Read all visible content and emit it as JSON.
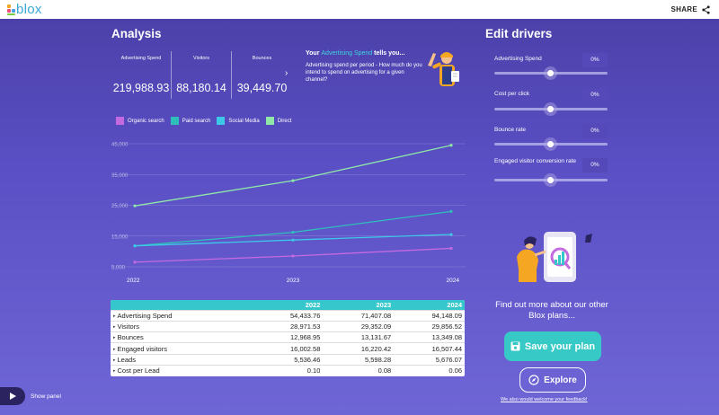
{
  "app": {
    "logo_text": "blox",
    "share_label": "SHARE"
  },
  "analysis": {
    "title": "Analysis",
    "stats": [
      {
        "label": "Advertising Spend",
        "value": "219,988.93"
      },
      {
        "label": "Visitors",
        "value": "88,180.14"
      },
      {
        "label": "Bounces",
        "value": "39,449.70"
      }
    ],
    "tells": {
      "prefix": "Your",
      "highlight": "Advertising Spend",
      "suffix": "tells you...",
      "description": "Advertising spend per period - How much do you intend to spend on advertising for a given channel?"
    }
  },
  "chart_data": {
    "type": "line",
    "x": [
      "2022",
      "2023",
      "2024"
    ],
    "ylim": [
      5000,
      45000
    ],
    "yticks": [
      "45,000",
      "35,000",
      "25,000",
      "15,000",
      "5,000"
    ],
    "ytick_values": [
      45000,
      35000,
      25000,
      15000,
      5000
    ],
    "grid": true,
    "legend_position": "top-left",
    "series": [
      {
        "name": "Organic search",
        "color": "#c46ae0",
        "values": [
          6500,
          8500,
          11000
        ]
      },
      {
        "name": "Paid search",
        "color": "#2fbfba",
        "values": [
          11800,
          16200,
          23000
        ]
      },
      {
        "name": "Social Media",
        "color": "#3ec8e8",
        "values": [
          11800,
          13700,
          15500
        ]
      },
      {
        "name": "Direct",
        "color": "#8fe8a8",
        "values": [
          24800,
          33000,
          44500
        ]
      }
    ]
  },
  "table": {
    "columns": [
      "",
      "2022",
      "2023",
      "2024"
    ],
    "rows": [
      {
        "label": "Advertising Spend",
        "values": [
          "54,433.76",
          "71,407.08",
          "94,148.09"
        ]
      },
      {
        "label": "Visitors",
        "values": [
          "28,971.53",
          "29,352.09",
          "29,856.52"
        ]
      },
      {
        "label": "Bounces",
        "values": [
          "12,968.95",
          "13,131.67",
          "13,349.08"
        ]
      },
      {
        "label": "Engaged visitors",
        "values": [
          "16,002.58",
          "16,220.42",
          "16,507.44"
        ]
      },
      {
        "label": "Leads",
        "values": [
          "5,536.46",
          "5,598.28",
          "5,676.07"
        ]
      },
      {
        "label": "Cost per Lead",
        "values": [
          "0.10",
          "0.08",
          "0.06"
        ]
      }
    ]
  },
  "drivers": {
    "title": "Edit drivers",
    "items": [
      {
        "label": "Advertising Spend",
        "value": "0%",
        "level": 0.5
      },
      {
        "label": "Cost per click",
        "value": "0%",
        "level": 0.5
      },
      {
        "label": "Bounce rate",
        "value": "0%",
        "level": 0.5
      },
      {
        "label": "Engaged visitor conversion rate",
        "value": "0%",
        "level": 0.5
      }
    ]
  },
  "promo": {
    "text": "Find out more about our other Blox plans...",
    "save_label": "Save your plan",
    "explore_label": "Explore",
    "feedback_label": "We also would welcome your feedback!"
  },
  "panel": {
    "show_label": "Show panel"
  }
}
